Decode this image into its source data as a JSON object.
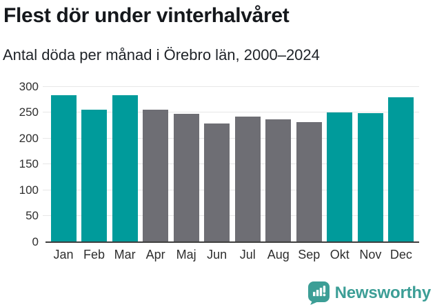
{
  "header": {
    "title": "Flest dör under vinterhalvåret",
    "subtitle": "Antal döda per månad i Örebro län, 2000–2024"
  },
  "chart_data": {
    "type": "bar",
    "title": "Flest dör under vinterhalvåret",
    "subtitle": "Antal döda per månad i Örebro län, 2000–2024",
    "categories": [
      "Jan",
      "Feb",
      "Mar",
      "Apr",
      "Maj",
      "Jun",
      "Jul",
      "Aug",
      "Sep",
      "Okt",
      "Nov",
      "Dec"
    ],
    "series": [
      {
        "name": "Antal döda per månad",
        "values": [
          284,
          256,
          283,
          256,
          247,
          229,
          242,
          237,
          231,
          250,
          249,
          280
        ]
      }
    ],
    "bar_colors": [
      "#009b9b",
      "#009b9b",
      "#009b9b",
      "#6e6e74",
      "#6e6e74",
      "#6e6e74",
      "#6e6e74",
      "#6e6e74",
      "#6e6e74",
      "#009b9b",
      "#009b9b",
      "#009b9b"
    ],
    "highlight_color": "#009b9b",
    "muted_color": "#6e6e74",
    "xlabel": "",
    "ylabel": "",
    "ylim": [
      0,
      300
    ],
    "yticks": [
      0,
      50,
      100,
      150,
      200,
      250,
      300
    ],
    "grid": true,
    "gridline_color": "#e7e7e7",
    "axis_line_color": "#3e3e3e",
    "legend": false
  },
  "footer": {
    "brand": "Newsworthy",
    "brand_color": "#3c9e96",
    "icon": "bar-chart-speech-bubble"
  }
}
